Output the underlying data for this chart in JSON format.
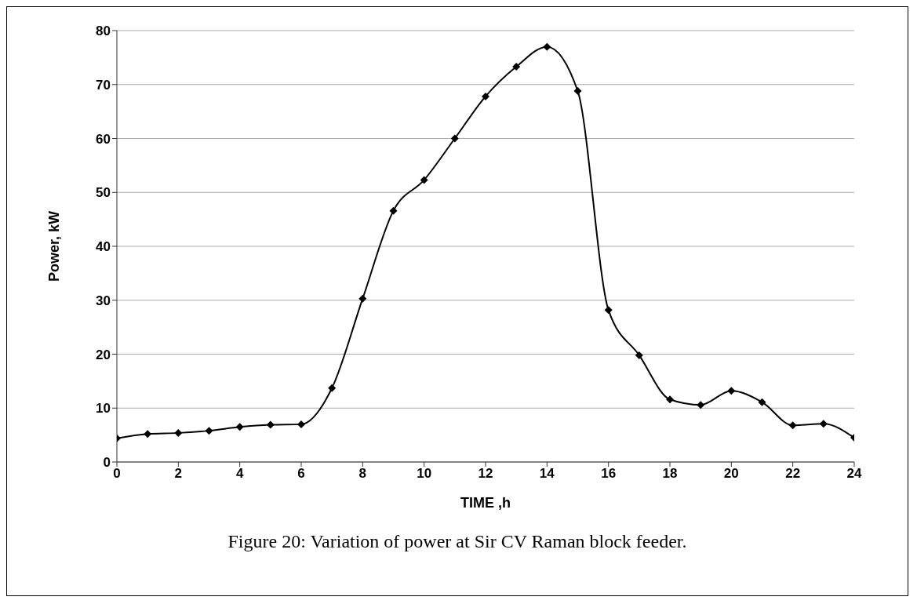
{
  "chart_data": {
    "type": "line",
    "xlabel": "TIME ,h",
    "ylabel": "Power, kW",
    "x": [
      0,
      1,
      2,
      3,
      4,
      5,
      6,
      7,
      8,
      9,
      10,
      11,
      12,
      13,
      14,
      15,
      16,
      17,
      18,
      19,
      20,
      21,
      22,
      23,
      24
    ],
    "series": [
      {
        "color": "#000000",
        "values": [
          4.4,
          5.2,
          5.4,
          5.8,
          6.5,
          6.9,
          7,
          13.7,
          30.3,
          46.6,
          52.3,
          60,
          67.8,
          73.3,
          77,
          68.8,
          28.2,
          19.8,
          11.6,
          10.6,
          13.2,
          11.1,
          6.8,
          7.1,
          4.5
        ]
      }
    ],
    "xlim": [
      0,
      24
    ],
    "xticks": [
      0,
      2,
      4,
      6,
      8,
      10,
      12,
      14,
      16,
      18,
      20,
      22,
      24
    ],
    "ylim": [
      0,
      80
    ],
    "yticks": [
      0,
      10,
      20,
      30,
      40,
      50,
      60,
      70,
      80
    ],
    "grid": "y",
    "marker": "diamond",
    "line_style": "solid",
    "legend": false,
    "annotations": [
      "Figure 20: Variation of power at Sir CV Raman block feeder."
    ]
  }
}
